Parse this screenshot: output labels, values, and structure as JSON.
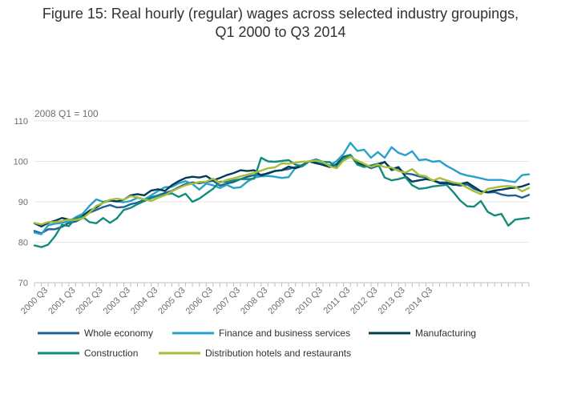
{
  "chart_data": {
    "type": "line",
    "title_line1": "Figure 15: Real hourly (regular) wages across selected industry groupings,",
    "title_line2": "Q1 2000 to Q3 2014",
    "y_caption": "2008 Q1 = 100",
    "ylim": [
      70,
      110
    ],
    "y_ticks": [
      70,
      80,
      90,
      100,
      110
    ],
    "grid": true,
    "legend_position": "bottom",
    "x_start": "2000 Q1",
    "x_tick_labels": [
      "2000 Q3",
      "2001 Q3",
      "2002 Q3",
      "2003 Q3",
      "2004 Q3",
      "2005 Q3",
      "2006 Q3",
      "2007 Q3",
      "2008 Q3",
      "2009 Q3",
      "2010 Q3",
      "2011 Q3",
      "2012 Q3",
      "2013 Q3",
      "2014 Q3"
    ],
    "series": [
      {
        "name": "Whole economy",
        "color": "#206095",
        "values": [
          82.8,
          82.2,
          83.2,
          83.2,
          83.8,
          84.8,
          85.1,
          86.0,
          87.3,
          88.0,
          88.7,
          89.2,
          88.6,
          88.7,
          89.4,
          89.8,
          90.5,
          91.1,
          91.6,
          92.2,
          92.7,
          93.6,
          94.4,
          94.8,
          94.6,
          94.9,
          95.2,
          94.0,
          94.5,
          94.9,
          95.6,
          96.2,
          96.6,
          96.7,
          97.0,
          97.6,
          97.8,
          98.1,
          98.6,
          99.1,
          100.0,
          99.5,
          99.2,
          99.0,
          99.0,
          100.3,
          101.3,
          99.8,
          99.1,
          98.3,
          98.9,
          99.9,
          97.8,
          98.3,
          97.0,
          96.8,
          96.3,
          96.0,
          95.3,
          94.8,
          94.8,
          94.3,
          94.0,
          94.3,
          93.2,
          92.6,
          92.3,
          92.4,
          91.8,
          91.5,
          91.6,
          91.0,
          91.7
        ]
      },
      {
        "name": "Finance and business services",
        "color": "#27a0cc",
        "values": [
          82.4,
          82.0,
          84.2,
          84.6,
          84.8,
          85.1,
          86.2,
          87.0,
          89.0,
          90.6,
          90.0,
          90.4,
          90.1,
          89.9,
          90.2,
          91.0,
          90.6,
          91.6,
          92.7,
          93.6,
          93.7,
          94.6,
          95.1,
          94.4,
          93.0,
          94.5,
          94.1,
          93.4,
          94.2,
          93.4,
          93.6,
          95.0,
          96.0,
          96.3,
          96.4,
          96.2,
          95.9,
          96.1,
          98.4,
          98.8,
          100.0,
          99.8,
          99.6,
          99.0,
          100.1,
          101.8,
          104.6,
          102.6,
          102.9,
          100.9,
          102.3,
          100.9,
          103.5,
          102.1,
          101.5,
          102.5,
          100.3,
          100.5,
          99.9,
          100.1,
          98.9,
          98.0,
          97.0,
          96.5,
          96.2,
          95.8,
          95.4,
          95.4,
          95.4,
          95.1,
          94.9,
          96.6,
          96.8
        ]
      },
      {
        "name": "Manufacturing",
        "color": "#003c57",
        "values": [
          84.7,
          83.9,
          84.8,
          85.3,
          86.0,
          85.6,
          85.6,
          86.5,
          87.8,
          88.6,
          89.8,
          90.3,
          90.1,
          90.5,
          91.6,
          91.9,
          91.6,
          92.8,
          93.1,
          92.7,
          94.1,
          95.1,
          95.9,
          96.2,
          96.0,
          96.4,
          95.3,
          95.9,
          96.6,
          97.1,
          97.8,
          97.6,
          97.8,
          96.5,
          97.1,
          97.6,
          97.8,
          98.7,
          98.3,
          98.9,
          100.0,
          99.6,
          99.1,
          98.6,
          99.3,
          101.1,
          101.6,
          99.5,
          99.1,
          98.6,
          99.4,
          99.8,
          98.1,
          98.6,
          96.3,
          95.0,
          95.3,
          95.6,
          95.3,
          94.6,
          94.6,
          94.2,
          94.4,
          94.8,
          93.7,
          92.6,
          92.4,
          92.8,
          93.0,
          93.3,
          93.5,
          93.8,
          94.4
        ]
      },
      {
        "name": "Construction",
        "color": "#118c7b",
        "values": [
          79.2,
          78.8,
          79.4,
          81.5,
          84.3,
          84.0,
          85.9,
          86.3,
          85.0,
          84.7,
          86.0,
          84.8,
          85.9,
          88.0,
          88.5,
          89.4,
          90.2,
          90.9,
          91.5,
          91.8,
          92.1,
          91.2,
          92.0,
          90.0,
          90.8,
          92.0,
          93.2,
          95.0,
          94.9,
          95.3,
          95.6,
          95.6,
          95.7,
          100.9,
          100.0,
          99.9,
          100.1,
          100.3,
          99.2,
          98.8,
          100.0,
          100.5,
          99.9,
          99.8,
          98.7,
          100.8,
          101.6,
          99.2,
          98.6,
          99.0,
          99.4,
          96.0,
          95.3,
          95.6,
          96.1,
          94.1,
          93.2,
          93.4,
          93.8,
          94.0,
          94.2,
          92.4,
          90.3,
          88.9,
          88.8,
          90.2,
          87.5,
          86.6,
          87.0,
          84.1,
          85.6,
          85.8,
          86.0
        ]
      },
      {
        "name": "Distribution hotels and restaurants",
        "color": "#a8bd3a",
        "values": [
          84.8,
          84.4,
          85.0,
          85.0,
          85.2,
          85.6,
          85.5,
          85.9,
          87.3,
          89.0,
          89.7,
          90.5,
          90.8,
          90.5,
          91.4,
          91.1,
          90.6,
          90.2,
          91.0,
          91.6,
          92.6,
          93.4,
          94.1,
          94.5,
          94.9,
          95.0,
          95.7,
          94.7,
          95.4,
          95.8,
          96.3,
          96.7,
          97.2,
          97.7,
          98.3,
          98.5,
          99.5,
          99.4,
          99.7,
          99.9,
          100.0,
          100.2,
          99.9,
          98.8,
          98.3,
          100.2,
          101.1,
          100.2,
          99.4,
          98.6,
          99.2,
          98.6,
          98.5,
          97.6,
          97.2,
          98.1,
          96.6,
          96.3,
          95.2,
          95.9,
          95.3,
          94.8,
          94.5,
          93.5,
          92.6,
          91.9,
          93.2,
          93.5,
          93.8,
          93.9,
          93.7,
          92.6,
          93.4
        ]
      }
    ]
  }
}
